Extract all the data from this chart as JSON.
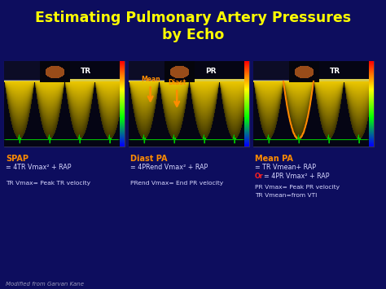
{
  "title_line1": "Estimating Pulmonary Artery Pressures",
  "title_line2": "by Echo",
  "title_color": "#FFFF00",
  "background_color": "#0d0d5e",
  "text_color_white": "#d8d8ff",
  "text_color_orange": "#FF8C00",
  "text_color_red": "#FF2020",
  "footer_text": "Modified from Garvan Kane",
  "col1_header": "SPAP",
  "col1_line1": "= 4TR Vmax² + RAP",
  "col1_line3": "TR Vmax= Peak TR velocity",
  "col1_label": "TR",
  "col2_header": "Diast PA",
  "col2_line1": "= 4PRend Vmax² + RAP",
  "col2_line3": "PRend Vmax= End PR velocity",
  "col2_label": "PR",
  "col2_arrow1": "Mean",
  "col2_arrow2": "Diast",
  "col3_header": "Mean PA",
  "col3_line1": "= TR Vmean+ RAP",
  "col3_line1b": "= 4PR Vmax² + RAP",
  "col3_line3a": "PR Vmax= Peak PR velocity",
  "col3_line3b": "TR Vmean=from VTI",
  "col3_label": "TR"
}
